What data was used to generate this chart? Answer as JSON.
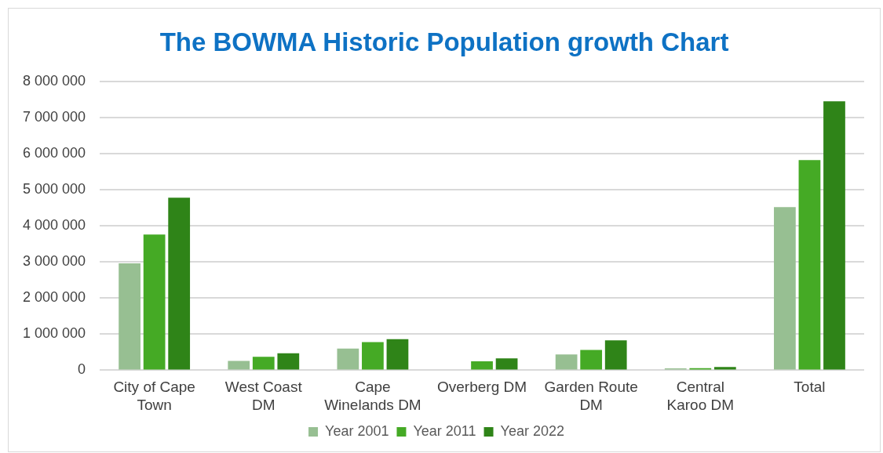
{
  "chart_data": {
    "type": "bar",
    "title": "The BOWMA Historic Population growth Chart",
    "categories": [
      "City of Cape Town",
      "West Coast DM",
      "Cape Winelands DM",
      "Overberg DM",
      "Garden Route DM",
      "Central Karoo DM",
      "Total"
    ],
    "series": [
      {
        "name": "Year 2001",
        "color": "#97bf92",
        "values": [
          2960000,
          260000,
          600000,
          null,
          440000,
          50000,
          4520000
        ]
      },
      {
        "name": "Year 2011",
        "color": "#45aa25",
        "values": [
          3760000,
          370000,
          780000,
          250000,
          560000,
          60000,
          5820000
        ]
      },
      {
        "name": "Year 2022",
        "color": "#2f8418",
        "values": [
          4780000,
          470000,
          860000,
          330000,
          830000,
          90000,
          7450000
        ]
      }
    ],
    "ylim": [
      0,
      8000000
    ],
    "yticks": [
      {
        "value": 0,
        "label": "0"
      },
      {
        "value": 1000000,
        "label": "1 000 000"
      },
      {
        "value": 2000000,
        "label": "2 000 000"
      },
      {
        "value": 3000000,
        "label": "3 000 000"
      },
      {
        "value": 4000000,
        "label": "4 000 000"
      },
      {
        "value": 5000000,
        "label": "5 000 000"
      },
      {
        "value": 6000000,
        "label": "6 000 000"
      },
      {
        "value": 7000000,
        "label": "7 000 000"
      },
      {
        "value": 8000000,
        "label": "8 000 000"
      }
    ],
    "grid": "y",
    "legend": "bottom"
  }
}
